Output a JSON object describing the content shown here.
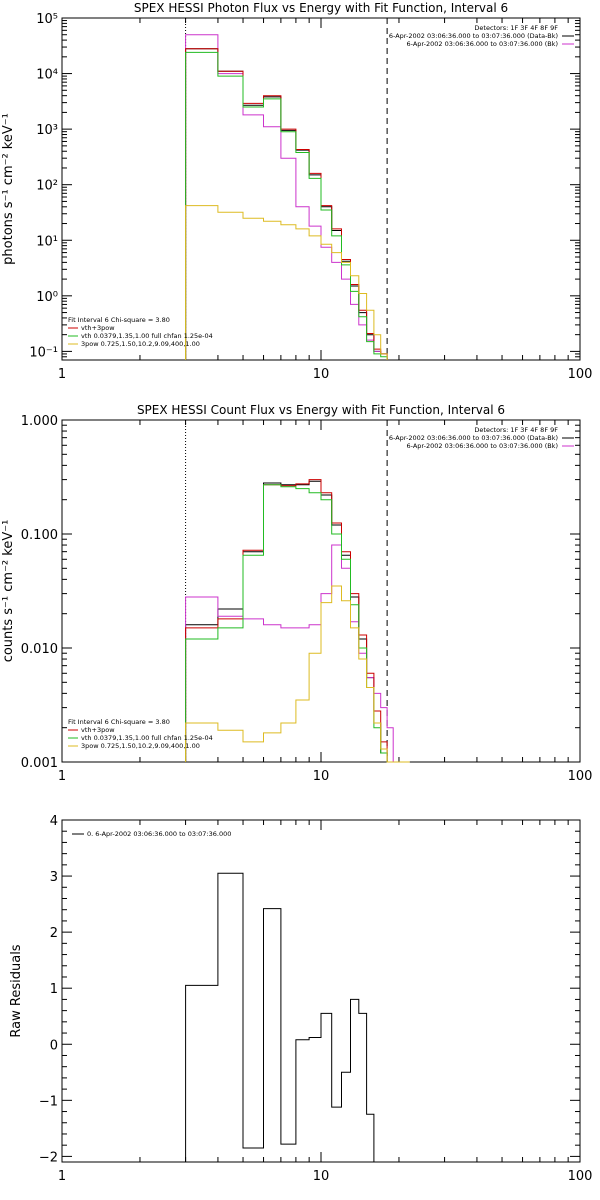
{
  "chart_data": [
    {
      "type": "line",
      "title": "SPEX HESSI Photon Flux vs Energy with Fit Function, Interval 6",
      "ylabel": "photons s⁻¹ cm⁻² keV⁻¹",
      "xscale": "log",
      "yscale": "log",
      "xlim": [
        1,
        100
      ],
      "ylim": [
        0.07,
        100000
      ],
      "xticks": [
        "1",
        "10",
        "100"
      ],
      "yticks": [
        "10⁻¹",
        "10⁰",
        "10¹",
        "10²",
        "10³",
        "10⁴",
        "10⁵"
      ],
      "ytick_values": [
        0.1,
        1,
        10,
        100,
        1000,
        10000,
        100000
      ],
      "vlines": [
        {
          "x": 3,
          "style": "dotted"
        },
        {
          "x": 18,
          "style": "dashed"
        }
      ],
      "legend_top_right": [
        "Detectors: 1F 3F 4F 8F 9F",
        "6-Apr-2002 03:06:36.000 to 03:07:36.000 (Data-Bk)",
        "6-Apr-2002 03:06:36.000 to 03:07:36.000 (Bk)"
      ],
      "legend_bottom_left": [
        "Fit Interval 6   Chi-square = 3.80",
        "vth+3pow",
        "vth 0.0379,1.35,1.00  full chfan 1.25e-04",
        "3pow 0.725,1.50,10.2,9.09,400,1.00"
      ],
      "bin_edges": [
        3,
        4,
        5,
        6,
        7,
        8,
        9,
        10,
        11,
        12,
        13,
        14,
        15,
        16,
        17,
        18
      ],
      "series": [
        {
          "name": "6-Apr-2002 03:06:36.000 to 03:07:36.000 (Data-Bk)",
          "color": "#000000",
          "values": [
            28000,
            11000,
            2700,
            3800,
            950,
            420,
            150,
            40,
            15,
            4.2,
            1.5,
            0.5,
            0.2,
            0.1,
            0.09
          ]
        },
        {
          "name": "6-Apr-2002 03:06:36.000 to 03:07:36.000 (Bk)",
          "color": "#cc33cc",
          "values": [
            50000,
            10000,
            1800,
            1100,
            300,
            40,
            18,
            7.5,
            4,
            2,
            0.7,
            0.3,
            0.16,
            0.1,
            0.09
          ]
        },
        {
          "name": "vth+3pow",
          "color": "#cc0000",
          "values": [
            28000,
            11000,
            2900,
            4000,
            1000,
            430,
            160,
            42,
            16,
            4.5,
            1.6,
            0.55,
            0.21,
            0.11,
            0.09
          ]
        },
        {
          "name": "vth 0.0379,1.35,1.00  full chfan 1.25e-04",
          "color": "#22bb22",
          "values": [
            24000,
            9000,
            2500,
            3500,
            900,
            380,
            130,
            35,
            12,
            3.6,
            1.2,
            0.42,
            0.15,
            0.09,
            0.08
          ]
        },
        {
          "name": "3pow 0.725,1.50,10.2,9.09,400,1.00",
          "color": "#ddbb22",
          "values": [
            42,
            32,
            25,
            22,
            19,
            16,
            12,
            8.5,
            6,
            4,
            2.3,
            1.1,
            0.55,
            0.2,
            0.09
          ]
        }
      ]
    },
    {
      "type": "line",
      "title": "SPEX HESSI Count Flux vs Energy with Fit Function, Interval 6",
      "ylabel": "counts s⁻¹ cm⁻² keV⁻¹",
      "xscale": "log",
      "yscale": "log",
      "xlim": [
        1,
        100
      ],
      "ylim": [
        0.001,
        1
      ],
      "xticks": [
        "1",
        "10",
        "100"
      ],
      "yticks": [
        "0.001",
        "0.010",
        "0.100",
        "1.000"
      ],
      "ytick_values": [
        0.001,
        0.01,
        0.1,
        1
      ],
      "vlines": [
        {
          "x": 3,
          "style": "dotted"
        },
        {
          "x": 18,
          "style": "dashed"
        }
      ],
      "legend_top_right": [
        "Detectors: 1F 3F 4F 8F 9F",
        "6-Apr-2002 03:06:36.000 to 03:07:36.000 (Data-Bk)",
        "6-Apr-2002 03:06:36.000 to 03:07:36.000 (Bk)"
      ],
      "legend_bottom_left": [
        "Fit Interval 6   Chi-square = 3.80",
        "vth+3pow",
        "vth 0.0379,1.35,1.00  full chfan 1.25e-04",
        "3pow 0.725,1.50,10.2,9.09,400,1.00"
      ],
      "bin_edges": [
        3,
        4,
        5,
        6,
        7,
        8,
        9,
        10,
        11,
        12,
        13,
        14,
        15,
        16,
        17,
        18,
        19,
        20,
        21,
        22
      ],
      "series": [
        {
          "name": "6-Apr-2002 03:06:36.000 to 03:07:36.000 (Data-Bk)",
          "color": "#000000",
          "values": [
            0.016,
            0.022,
            0.07,
            0.28,
            0.27,
            0.27,
            0.29,
            0.22,
            0.12,
            0.065,
            0.028,
            0.012,
            0.0055,
            0.0022,
            0.0012,
            0.001,
            0.001,
            0.001,
            0.001
          ]
        },
        {
          "name": "6-Apr-2002 03:06:36.000 to 03:07:36.000 (Bk)",
          "color": "#cc33cc",
          "values": [
            0.028,
            0.019,
            0.018,
            0.016,
            0.015,
            0.015,
            0.016,
            0.03,
            0.08,
            0.05,
            0.017,
            0.009,
            0.0055,
            0.004,
            0.003,
            0.002,
            0.001,
            0.001,
            0.001
          ]
        },
        {
          "name": "vth+3pow",
          "color": "#cc0000",
          "values": [
            0.015,
            0.018,
            0.072,
            0.27,
            0.265,
            0.275,
            0.3,
            0.23,
            0.125,
            0.07,
            0.03,
            0.013,
            0.006,
            0.0028,
            0.0015,
            0.001,
            0.001,
            0.001,
            0.001
          ]
        },
        {
          "name": "vth 0.0379,1.35,1.00  full chfan 1.25e-04",
          "color": "#22bb22",
          "values": [
            0.012,
            0.015,
            0.065,
            0.27,
            0.26,
            0.25,
            0.23,
            0.2,
            0.1,
            0.06,
            0.024,
            0.01,
            0.0045,
            0.002,
            0.0012,
            0.001,
            0.001,
            0.001,
            0.001
          ]
        },
        {
          "name": "3pow 0.725,1.50,10.2,9.09,400,1.00",
          "color": "#ddbb22",
          "values": [
            0.0022,
            0.0019,
            0.0015,
            0.0018,
            0.0022,
            0.0035,
            0.009,
            0.025,
            0.035,
            0.026,
            0.015,
            0.008,
            0.0045,
            0.0022,
            0.0013,
            0.001,
            0.001,
            0.001,
            0.001
          ]
        }
      ]
    },
    {
      "type": "line",
      "title": "",
      "ylabel": "Raw Residuals",
      "xscale": "log",
      "yscale": "linear",
      "xlim": [
        1,
        100
      ],
      "ylim": [
        -2.1,
        4
      ],
      "xticks": [
        "1",
        "10",
        "100"
      ],
      "yticks": [
        "−2",
        "−1",
        "0",
        "1",
        "2",
        "3",
        "4"
      ],
      "ytick_values": [
        -2,
        -1,
        0,
        1,
        2,
        3,
        4
      ],
      "legend_top_left": [
        "0.  6-Apr-2002 03:06:36.000 to 03:07:36.000"
      ],
      "bin_edges": [
        3,
        4,
        5,
        6,
        7,
        8,
        9,
        10,
        11,
        12,
        13,
        14,
        15,
        16,
        17,
        18,
        19
      ],
      "series": [
        {
          "name": "0.  6-Apr-2002 03:06:36.000 to 03:07:36.000",
          "color": "#000000",
          "values": [
            1.05,
            3.05,
            -1.85,
            2.42,
            -1.78,
            0.08,
            0.12,
            0.55,
            -1.12,
            -0.5,
            0.8,
            0.55,
            -1.25,
            -2.1,
            -2.1,
            -2.1
          ]
        }
      ]
    }
  ]
}
